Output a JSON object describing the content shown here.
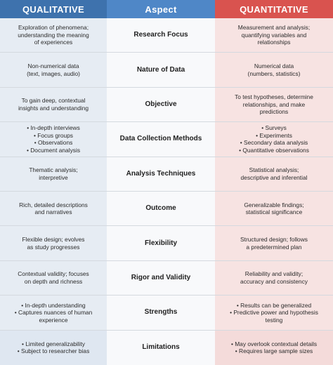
{
  "headers": {
    "qualitative": "QUALITATIVE",
    "aspect": "Aspect",
    "quantitative": "QUANTITATIVE"
  },
  "rows": [
    {
      "aspect": "Research Focus",
      "qualitative": [
        "Exploration of phenomena;",
        "understanding the meaning",
        "of experiences"
      ],
      "quantitative": [
        "Measurement and analysis;",
        "quantifying variables and",
        "relationships"
      ]
    },
    {
      "aspect": "Nature of Data",
      "qualitative": [
        "Non-numerical data",
        "(text, images, audio)"
      ],
      "quantitative": [
        "Numerical data",
        "(numbers, statistics)"
      ]
    },
    {
      "aspect": "Objective",
      "qualitative": [
        "To gain deep, contextual",
        "insights and understanding"
      ],
      "quantitative": [
        "To test hypotheses, determine",
        "relationships, and make",
        "predictions"
      ]
    },
    {
      "aspect": "Data Collection Methods",
      "qualitative_bullets": [
        "In-depth interviews",
        "Focus groups",
        "Observations",
        "Document analysis"
      ],
      "quantitative_bullets": [
        "Surveys",
        "Experiments",
        "Secondary data analysis",
        "Quantitative observations"
      ]
    },
    {
      "aspect": "Analysis Techniques",
      "qualitative": [
        "Thematic analysis;",
        "interpretive"
      ],
      "quantitative": [
        "Statistical analysis;",
        "descriptive and inferential"
      ]
    },
    {
      "aspect": "Outcome",
      "qualitative": [
        "Rich, detailed descriptions",
        "and narratives"
      ],
      "quantitative": [
        "Generalizable findings;",
        "statistical significance"
      ]
    },
    {
      "aspect": "Flexibility",
      "qualitative": [
        "Flexible design; evolves",
        "as study progresses"
      ],
      "quantitative": [
        "Structured design; follows",
        "a predetermined plan"
      ]
    },
    {
      "aspect": "Rigor and Validity",
      "qualitative": [
        "Contextual validity; focuses",
        "on depth and richness"
      ],
      "quantitative": [
        "Reliability and validity;",
        "accuracy and consistency"
      ]
    },
    {
      "aspect": "Strengths",
      "qualitative_bullets": [
        "In-depth understanding",
        "Captures nuances of human experience"
      ],
      "quantitative_bullets": [
        "Results can be generalized",
        "Predictive power and hypothesis testing"
      ]
    },
    {
      "aspect": "Limitations",
      "qualitative_bullets": [
        "Limited generalizability",
        "Subject to researcher bias"
      ],
      "quantitative_bullets": [
        "May overlook contextual details",
        "Requires large sample sizes"
      ]
    }
  ]
}
